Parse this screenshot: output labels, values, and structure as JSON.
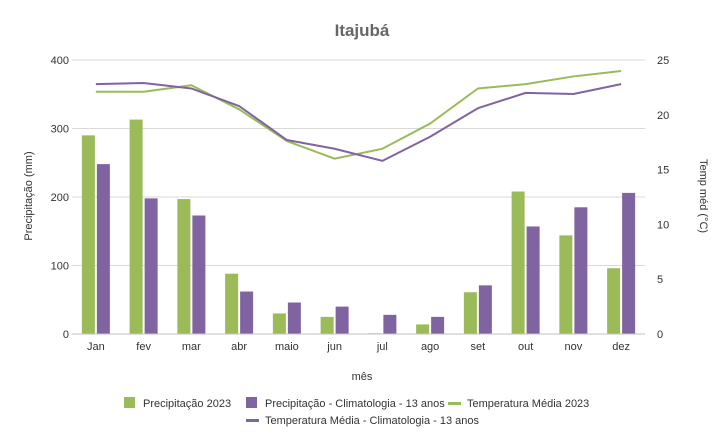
{
  "chart_data": {
    "type": "bar",
    "title": "Itajubá",
    "xlabel": "mês",
    "ylabel": "Precipitação (mm)",
    "y2label": "Temp méd (°C)",
    "categories": [
      "Jan",
      "fev",
      "mar",
      "abr",
      "maio",
      "jun",
      "jul",
      "ago",
      "set",
      "out",
      "nov",
      "dez"
    ],
    "ylim": [
      0,
      400
    ],
    "yticks": [
      "0",
      "100",
      "200",
      "300",
      "400"
    ],
    "y2lim": [
      0,
      25
    ],
    "y2ticks": [
      "0",
      "5",
      "10",
      "15",
      "20",
      "25"
    ],
    "grid": true,
    "legend_position": "bottom",
    "series": [
      {
        "name": "Precipitação 2023",
        "kind": "bar",
        "axis": "left",
        "color": "#9bbb59",
        "values": [
          290,
          313,
          197,
          88,
          30,
          25,
          1,
          14,
          61,
          208,
          144,
          96
        ]
      },
      {
        "name": "Precipitação - Climatologia - 13 anos",
        "kind": "bar",
        "axis": "left",
        "color": "#8064a2",
        "values": [
          248,
          198,
          173,
          62,
          46,
          40,
          28,
          25,
          71,
          157,
          185,
          206
        ]
      },
      {
        "name": "Temperatura Média 2023",
        "kind": "line",
        "axis": "right",
        "color": "#9bbb59",
        "values": [
          22.1,
          22.1,
          22.7,
          20.5,
          17.6,
          16.0,
          16.9,
          19.2,
          22.4,
          22.8,
          23.5,
          24.0
        ]
      },
      {
        "name": "Temperatura Média - Climatologia - 13 anos",
        "kind": "line",
        "axis": "right",
        "color": "#8064a2",
        "values": [
          22.8,
          22.9,
          22.4,
          20.8,
          17.7,
          16.9,
          15.8,
          18.0,
          20.6,
          22.0,
          21.9,
          22.8
        ]
      }
    ]
  }
}
